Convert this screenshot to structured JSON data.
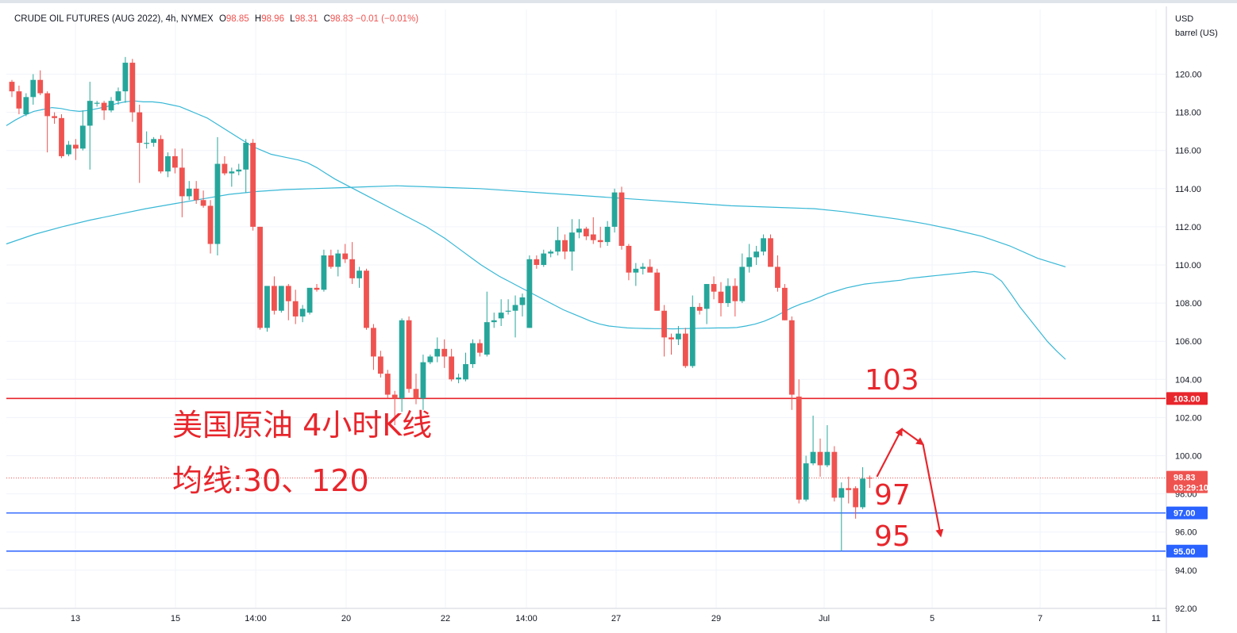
{
  "header": {
    "symbol": "CRUDE OIL FUTURES (AUG 2022)",
    "interval": "4h",
    "exchange": "NYMEX",
    "o_label": "O",
    "o_value": "98.85",
    "h_label": "H",
    "h_value": "98.96",
    "l_label": "L",
    "l_value": "98.31",
    "c_label": "C",
    "c_value": "98.83",
    "change": "−0.01 (−0.01%)"
  },
  "axis": {
    "currency": "USD",
    "unit": "barrel (US)"
  },
  "colors": {
    "up": "#26a69a",
    "down": "#ef5350",
    "ma": "#38b8d6",
    "resistance": "#e8262c",
    "support": "#2962ff",
    "annotation": "#e8262c"
  },
  "annotations": {
    "title": "美国原油 4小时K线",
    "subtitle": "均线:30、120",
    "label_103": "103",
    "label_97": "97",
    "label_95": "95"
  },
  "price_tags": {
    "resistance": "103.00",
    "last": "98.83",
    "countdown": "03:29:10",
    "support1": "97.00",
    "support2": "95.00"
  },
  "chart_data": {
    "type": "candlestick",
    "y_ticks": [
      "120.00",
      "118.00",
      "116.00",
      "114.00",
      "112.00",
      "110.00",
      "108.00",
      "106.00",
      "104.00",
      "102.00",
      "100.00",
      "98.00",
      "96.00",
      "94.00",
      "92.00"
    ],
    "ylim": [
      92,
      121.5
    ],
    "x_ticks": [
      "13",
      "15",
      "14:00",
      "20",
      "22",
      "14:00",
      "27",
      "29",
      "Jul",
      "5",
      "7",
      "11"
    ],
    "horizontal_levels": [
      {
        "value": 103.0,
        "style": "resistance"
      },
      {
        "value": 97.0,
        "style": "support"
      },
      {
        "value": 95.0,
        "style": "support"
      },
      {
        "value": 98.83,
        "style": "last-price"
      }
    ],
    "candles": [
      {
        "o": 119.6,
        "h": 119.7,
        "l": 118.8,
        "c": 119.1
      },
      {
        "o": 119.1,
        "h": 119.4,
        "l": 117.9,
        "c": 118.2
      },
      {
        "o": 117.9,
        "h": 119.0,
        "l": 117.8,
        "c": 118.8
      },
      {
        "o": 118.8,
        "h": 120.0,
        "l": 118.4,
        "c": 119.7
      },
      {
        "o": 119.7,
        "h": 120.2,
        "l": 118.9,
        "c": 119.0
      },
      {
        "o": 119.0,
        "h": 119.1,
        "l": 115.9,
        "c": 117.8
      },
      {
        "o": 117.8,
        "h": 118.0,
        "l": 117.4,
        "c": 117.7
      },
      {
        "o": 117.7,
        "h": 117.9,
        "l": 115.6,
        "c": 115.7
      },
      {
        "o": 115.8,
        "h": 116.5,
        "l": 115.7,
        "c": 116.3
      },
      {
        "o": 116.3,
        "h": 116.6,
        "l": 115.5,
        "c": 116.1
      },
      {
        "o": 116.1,
        "h": 118.1,
        "l": 116.0,
        "c": 117.3
      },
      {
        "o": 117.3,
        "h": 119.6,
        "l": 115.0,
        "c": 118.6
      },
      {
        "o": 118.5,
        "h": 118.6,
        "l": 118.3,
        "c": 118.5
      },
      {
        "o": 118.5,
        "h": 118.6,
        "l": 117.6,
        "c": 118.1
      },
      {
        "o": 118.1,
        "h": 118.8,
        "l": 118.0,
        "c": 118.6
      },
      {
        "o": 118.6,
        "h": 119.3,
        "l": 118.4,
        "c": 119.1
      },
      {
        "o": 119.1,
        "h": 120.9,
        "l": 118.5,
        "c": 120.6
      },
      {
        "o": 120.6,
        "h": 120.8,
        "l": 117.5,
        "c": 118.0
      },
      {
        "o": 118.0,
        "h": 118.4,
        "l": 114.3,
        "c": 116.4
      },
      {
        "o": 116.4,
        "h": 117.0,
        "l": 116.1,
        "c": 116.4
      },
      {
        "o": 116.4,
        "h": 116.7,
        "l": 116.2,
        "c": 116.6
      },
      {
        "o": 116.6,
        "h": 116.8,
        "l": 114.8,
        "c": 114.9
      },
      {
        "o": 114.9,
        "h": 115.9,
        "l": 114.6,
        "c": 115.7
      },
      {
        "o": 115.7,
        "h": 116.1,
        "l": 114.8,
        "c": 115.1
      },
      {
        "o": 115.1,
        "h": 116.1,
        "l": 112.5,
        "c": 113.6
      },
      {
        "o": 113.6,
        "h": 114.4,
        "l": 113.4,
        "c": 114.0
      },
      {
        "o": 114.0,
        "h": 114.4,
        "l": 113.2,
        "c": 113.4
      },
      {
        "o": 113.4,
        "h": 113.9,
        "l": 113.0,
        "c": 113.1
      },
      {
        "o": 113.1,
        "h": 113.4,
        "l": 110.6,
        "c": 111.1
      },
      {
        "o": 111.1,
        "h": 116.7,
        "l": 110.5,
        "c": 115.3
      },
      {
        "o": 115.3,
        "h": 115.7,
        "l": 114.7,
        "c": 114.8
      },
      {
        "o": 114.8,
        "h": 115.1,
        "l": 114.1,
        "c": 114.9
      },
      {
        "o": 114.9,
        "h": 115.3,
        "l": 114.7,
        "c": 115.0
      },
      {
        "o": 115.0,
        "h": 116.6,
        "l": 113.8,
        "c": 116.4
      },
      {
        "o": 116.4,
        "h": 116.6,
        "l": 111.8,
        "c": 112.0
      },
      {
        "o": 112.0,
        "h": 112.0,
        "l": 106.6,
        "c": 106.7
      },
      {
        "o": 106.7,
        "h": 108.8,
        "l": 106.5,
        "c": 108.9
      },
      {
        "o": 108.9,
        "h": 109.4,
        "l": 107.4,
        "c": 107.6
      },
      {
        "o": 107.6,
        "h": 108.9,
        "l": 107.5,
        "c": 108.9
      },
      {
        "o": 108.9,
        "h": 109.0,
        "l": 107.1,
        "c": 108.1
      },
      {
        "o": 108.1,
        "h": 108.7,
        "l": 106.9,
        "c": 107.3
      },
      {
        "o": 107.3,
        "h": 107.9,
        "l": 107.0,
        "c": 107.7
      },
      {
        "o": 107.5,
        "h": 108.8,
        "l": 107.4,
        "c": 108.8
      },
      {
        "o": 108.8,
        "h": 109.0,
        "l": 108.6,
        "c": 108.7
      },
      {
        "o": 108.7,
        "h": 110.8,
        "l": 108.6,
        "c": 110.5
      },
      {
        "o": 110.5,
        "h": 110.8,
        "l": 109.8,
        "c": 109.9
      },
      {
        "o": 109.9,
        "h": 110.8,
        "l": 109.4,
        "c": 110.6
      },
      {
        "o": 110.6,
        "h": 111.1,
        "l": 110.1,
        "c": 110.3
      },
      {
        "o": 110.3,
        "h": 111.2,
        "l": 109.0,
        "c": 109.3
      },
      {
        "o": 109.3,
        "h": 109.9,
        "l": 108.8,
        "c": 109.7
      },
      {
        "o": 109.7,
        "h": 109.8,
        "l": 106.6,
        "c": 106.7
      },
      {
        "o": 106.7,
        "h": 106.9,
        "l": 104.5,
        "c": 105.2
      },
      {
        "o": 105.2,
        "h": 105.5,
        "l": 104.1,
        "c": 104.3
      },
      {
        "o": 104.3,
        "h": 104.5,
        "l": 103.0,
        "c": 103.2
      },
      {
        "o": 103.2,
        "h": 103.4,
        "l": 101.6,
        "c": 103.0
      },
      {
        "o": 103.0,
        "h": 107.2,
        "l": 102.3,
        "c": 107.1
      },
      {
        "o": 107.1,
        "h": 107.3,
        "l": 103.3,
        "c": 103.5
      },
      {
        "o": 103.5,
        "h": 104.3,
        "l": 102.7,
        "c": 103.0
      },
      {
        "o": 103.0,
        "h": 105.3,
        "l": 102.4,
        "c": 104.9
      },
      {
        "o": 104.9,
        "h": 105.3,
        "l": 104.8,
        "c": 105.2
      },
      {
        "o": 105.2,
        "h": 106.2,
        "l": 104.9,
        "c": 105.6
      },
      {
        "o": 105.6,
        "h": 106.1,
        "l": 104.6,
        "c": 105.2
      },
      {
        "o": 105.2,
        "h": 105.6,
        "l": 103.9,
        "c": 104.0
      },
      {
        "o": 104.0,
        "h": 104.3,
        "l": 103.8,
        "c": 104.1
      },
      {
        "o": 104.0,
        "h": 105.4,
        "l": 103.9,
        "c": 104.8
      },
      {
        "o": 104.8,
        "h": 106.1,
        "l": 104.6,
        "c": 105.9
      },
      {
        "o": 105.9,
        "h": 106.1,
        "l": 105.2,
        "c": 105.4
      },
      {
        "o": 105.3,
        "h": 108.6,
        "l": 105.2,
        "c": 107.0
      },
      {
        "o": 107.0,
        "h": 107.5,
        "l": 106.7,
        "c": 107.1
      },
      {
        "o": 107.2,
        "h": 108.2,
        "l": 106.8,
        "c": 107.5
      },
      {
        "o": 107.6,
        "h": 108.2,
        "l": 107.4,
        "c": 107.6
      },
      {
        "o": 107.6,
        "h": 108.4,
        "l": 106.2,
        "c": 107.9
      },
      {
        "o": 107.9,
        "h": 108.5,
        "l": 107.3,
        "c": 108.3
      },
      {
        "o": 106.7,
        "h": 110.5,
        "l": 106.7,
        "c": 110.3
      },
      {
        "o": 110.3,
        "h": 110.5,
        "l": 109.8,
        "c": 110.0
      },
      {
        "o": 110.0,
        "h": 110.8,
        "l": 109.9,
        "c": 110.6
      },
      {
        "o": 110.6,
        "h": 110.8,
        "l": 110.4,
        "c": 110.7
      },
      {
        "o": 110.7,
        "h": 112.0,
        "l": 110.5,
        "c": 111.3
      },
      {
        "o": 111.3,
        "h": 111.6,
        "l": 110.3,
        "c": 110.7
      },
      {
        "o": 110.7,
        "h": 112.4,
        "l": 109.7,
        "c": 111.7
      },
      {
        "o": 111.7,
        "h": 112.4,
        "l": 111.4,
        "c": 111.9
      },
      {
        "o": 111.9,
        "h": 112.0,
        "l": 111.3,
        "c": 111.5
      },
      {
        "o": 111.6,
        "h": 112.5,
        "l": 111.1,
        "c": 111.3
      },
      {
        "o": 111.3,
        "h": 112.0,
        "l": 110.9,
        "c": 111.2
      },
      {
        "o": 111.2,
        "h": 112.3,
        "l": 111.0,
        "c": 112.0
      },
      {
        "o": 112.0,
        "h": 114.0,
        "l": 111.7,
        "c": 113.8
      },
      {
        "o": 113.8,
        "h": 114.1,
        "l": 110.8,
        "c": 111.0
      },
      {
        "o": 111.0,
        "h": 111.1,
        "l": 109.2,
        "c": 109.6
      },
      {
        "o": 109.6,
        "h": 110.1,
        "l": 108.9,
        "c": 109.8
      },
      {
        "o": 109.8,
        "h": 110.1,
        "l": 109.5,
        "c": 109.9
      },
      {
        "o": 109.9,
        "h": 110.3,
        "l": 109.7,
        "c": 109.6
      },
      {
        "o": 109.6,
        "h": 109.8,
        "l": 107.6,
        "c": 107.6
      },
      {
        "o": 107.6,
        "h": 107.9,
        "l": 105.2,
        "c": 106.2
      },
      {
        "o": 106.2,
        "h": 106.4,
        "l": 105.3,
        "c": 106.1
      },
      {
        "o": 106.1,
        "h": 106.8,
        "l": 105.8,
        "c": 106.4
      },
      {
        "o": 106.4,
        "h": 106.7,
        "l": 104.6,
        "c": 104.7
      },
      {
        "o": 104.7,
        "h": 108.4,
        "l": 104.6,
        "c": 107.8
      },
      {
        "o": 107.8,
        "h": 108.0,
        "l": 107.4,
        "c": 107.6
      },
      {
        "o": 107.7,
        "h": 109.0,
        "l": 106.9,
        "c": 109.0
      },
      {
        "o": 109.0,
        "h": 109.4,
        "l": 108.2,
        "c": 108.6
      },
      {
        "o": 108.6,
        "h": 109.1,
        "l": 107.3,
        "c": 108.0
      },
      {
        "o": 108.0,
        "h": 109.3,
        "l": 107.8,
        "c": 108.9
      },
      {
        "o": 108.9,
        "h": 109.3,
        "l": 107.3,
        "c": 108.1
      },
      {
        "o": 108.1,
        "h": 110.6,
        "l": 108.0,
        "c": 109.9
      },
      {
        "o": 109.9,
        "h": 111.1,
        "l": 109.6,
        "c": 110.4
      },
      {
        "o": 110.4,
        "h": 111.0,
        "l": 110.0,
        "c": 110.7
      },
      {
        "o": 110.7,
        "h": 111.6,
        "l": 110.5,
        "c": 111.4
      },
      {
        "o": 111.4,
        "h": 111.6,
        "l": 110.0,
        "c": 109.9
      },
      {
        "o": 109.9,
        "h": 110.5,
        "l": 108.6,
        "c": 108.8
      },
      {
        "o": 108.8,
        "h": 109.0,
        "l": 107.1,
        "c": 107.1
      },
      {
        "o": 107.1,
        "h": 107.3,
        "l": 102.4,
        "c": 103.2
      },
      {
        "o": 103.1,
        "h": 104.0,
        "l": 97.5,
        "c": 97.7
      },
      {
        "o": 97.7,
        "h": 100.0,
        "l": 97.6,
        "c": 99.6
      },
      {
        "o": 99.6,
        "h": 102.1,
        "l": 99.5,
        "c": 100.2
      },
      {
        "o": 100.2,
        "h": 100.9,
        "l": 98.9,
        "c": 99.5
      },
      {
        "o": 99.5,
        "h": 101.6,
        "l": 99.4,
        "c": 100.2
      },
      {
        "o": 100.2,
        "h": 100.5,
        "l": 97.6,
        "c": 97.8
      },
      {
        "o": 97.8,
        "h": 98.6,
        "l": 95.0,
        "c": 98.3
      },
      {
        "o": 98.3,
        "h": 98.9,
        "l": 97.5,
        "c": 98.2
      },
      {
        "o": 98.3,
        "h": 98.4,
        "l": 96.7,
        "c": 97.3
      },
      {
        "o": 97.3,
        "h": 99.4,
        "l": 97.2,
        "c": 98.8
      },
      {
        "o": 98.85,
        "h": 98.96,
        "l": 98.31,
        "c": 98.83
      }
    ],
    "ma30": [
      117.3,
      117.6,
      117.85,
      118.05,
      118.15,
      118.25,
      118.2,
      118.1,
      118.05,
      118.1,
      118.2,
      118.3,
      118.45,
      118.55,
      118.6,
      118.55,
      118.55,
      118.5,
      118.4,
      118.3,
      118.1,
      117.9,
      117.7,
      117.4,
      117.1,
      116.8,
      116.5,
      116.2,
      116.0,
      115.8,
      115.7,
      115.6,
      115.5,
      115.35,
      115.1,
      114.8,
      114.5,
      114.25,
      114.0,
      113.75,
      113.5,
      113.25,
      113.0,
      112.75,
      112.5,
      112.25,
      112.0,
      111.7,
      111.4,
      111.05,
      110.7,
      110.35,
      110.0,
      109.7,
      109.4,
      109.15,
      108.9,
      108.65,
      108.4,
      108.15,
      107.9,
      107.65,
      107.45,
      107.25,
      107.05,
      106.9,
      106.8,
      106.75,
      106.7,
      106.68,
      106.67,
      106.66,
      106.66,
      106.65,
      106.66,
      106.67,
      106.68,
      106.69,
      106.7,
      106.7,
      106.72,
      106.8,
      106.9,
      107.05,
      107.25,
      107.5,
      107.75,
      107.95,
      108.1,
      108.3,
      108.5,
      108.65,
      108.8,
      108.9,
      109.0,
      109.05,
      109.1,
      109.15,
      109.2,
      109.3,
      109.35,
      109.4,
      109.45,
      109.5,
      109.55,
      109.6,
      109.65,
      109.6,
      109.5,
      109.15,
      108.5,
      107.8,
      107.2,
      106.6,
      106.0,
      105.5,
      105.05
    ],
    "ma120": [
      111.1,
      111.6,
      112.0,
      112.35,
      112.65,
      112.95,
      113.2,
      113.45,
      113.7,
      113.85,
      113.95,
      114.0,
      114.05,
      114.1,
      114.15,
      114.1,
      114.05,
      114.0,
      113.9,
      113.8,
      113.7,
      113.6,
      113.5,
      113.4,
      113.3,
      113.2,
      113.1,
      113.05,
      113.0,
      112.95,
      112.8,
      112.6,
      112.4,
      112.15,
      111.85,
      111.5,
      111.0,
      110.35,
      109.9
    ],
    "forecast_path": [
      {
        "i": 122,
        "v": 98.9
      },
      {
        "i": 125.5,
        "v": 101.4
      },
      {
        "i": 128.5,
        "v": 100.6
      },
      {
        "i": 131,
        "v": 95.8
      }
    ]
  }
}
